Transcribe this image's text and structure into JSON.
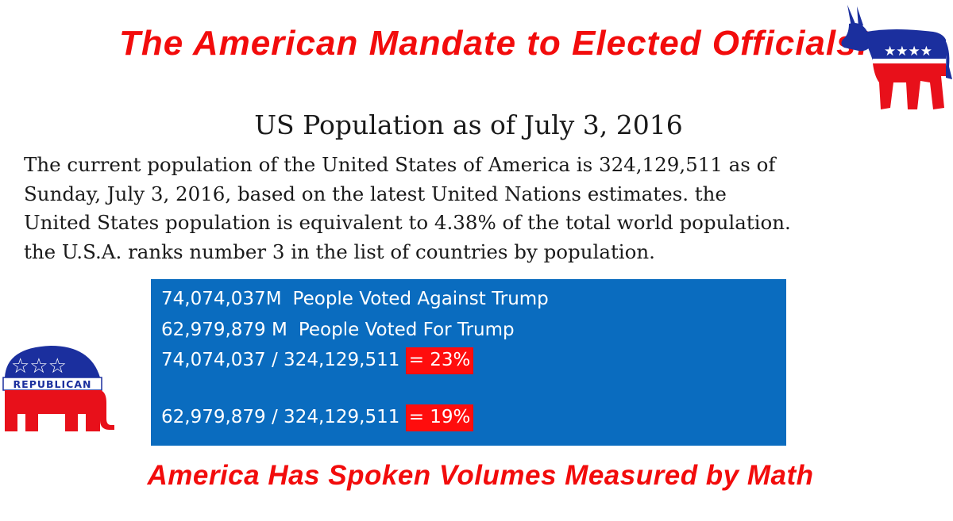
{
  "title": "The American Mandate to Elected Officials!",
  "subtitle": "US Population as of July 3, 2016",
  "paragraph": [
    "The current population of the United States of America is 324,129,511 as of",
    "Sunday, July 3, 2016, based on the latest United Nations estimates. the",
    "United States population is equivalent to 4.38% of the total world population.",
    "the U.S.A. ranks number 3 in the list of countries by population."
  ],
  "votes": {
    "against_number": "74,074,037M",
    "against_label": "People Voted Against Trump",
    "for_number": "62,979,879 M",
    "for_label": "People Voted For Trump",
    "calc_against": "74,074,037 / 324,129,511",
    "calc_against_pct": "= 23%",
    "calc_for": "62,979,879 / 324,129,511",
    "calc_for_pct": "= 19%"
  },
  "footer": "America Has Spoken Volumes Measured by Math",
  "logos": {
    "democrat": "democrat-donkey-logo",
    "republican": "republican-elephant-logo",
    "republican_text": "REPUBLICAN"
  },
  "colors": {
    "headline_red": "#f20c0c",
    "box_blue": "#0a6cbf",
    "highlight_red": "#ff0d0d",
    "logo_navy": "#1b2f9e",
    "logo_red": "#e8101a"
  }
}
